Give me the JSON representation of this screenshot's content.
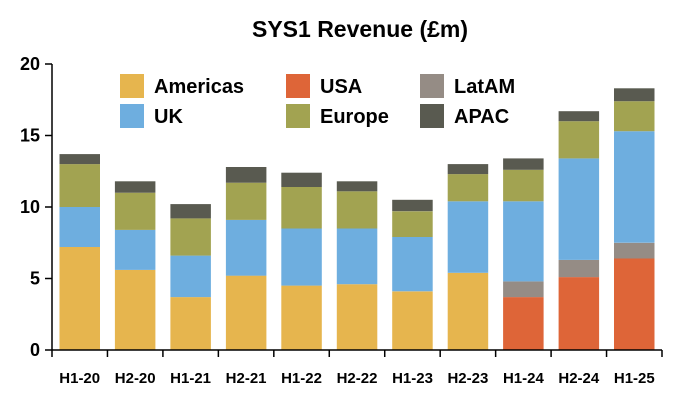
{
  "chart_data": {
    "type": "bar",
    "stacked": true,
    "title": "SYS1 Revenue (£m)",
    "xlabel": "",
    "ylabel": "",
    "ylim": [
      0,
      20
    ],
    "yticks": [
      "0",
      "5",
      "10",
      "15",
      "20"
    ],
    "grid": false,
    "legend_position": "top",
    "categories": [
      "H1-20",
      "H2-20",
      "H1-21",
      "H2-21",
      "H1-22",
      "H2-22",
      "H1-23",
      "H2-23",
      "H1-24",
      "H2-24",
      "H1-25"
    ],
    "series": [
      {
        "name": "Americas",
        "color": "#E6B54E",
        "values": [
          7.2,
          5.6,
          3.7,
          5.2,
          4.5,
          4.6,
          4.1,
          5.4,
          0,
          0,
          0
        ]
      },
      {
        "name": "USA",
        "color": "#DE6538",
        "values": [
          0,
          0,
          0,
          0,
          0,
          0,
          0,
          0,
          3.7,
          5.1,
          6.4
        ]
      },
      {
        "name": "LatAM",
        "color": "#958C85",
        "values": [
          0,
          0,
          0,
          0,
          0,
          0,
          0,
          0,
          1.1,
          1.2,
          1.1
        ]
      },
      {
        "name": "UK",
        "color": "#6EAEDF",
        "values": [
          2.8,
          2.8,
          2.9,
          3.9,
          4.0,
          3.9,
          3.8,
          5.0,
          5.6,
          7.1,
          7.8
        ]
      },
      {
        "name": "Europe",
        "color": "#A2A351",
        "values": [
          3.0,
          2.6,
          2.6,
          2.6,
          2.9,
          2.6,
          1.8,
          1.9,
          2.2,
          2.6,
          2.1
        ]
      },
      {
        "name": "APAC",
        "color": "#595A50",
        "values": [
          0.7,
          0.8,
          1.0,
          1.1,
          1.0,
          0.7,
          0.8,
          0.7,
          0.8,
          0.7,
          0.9
        ]
      }
    ]
  }
}
